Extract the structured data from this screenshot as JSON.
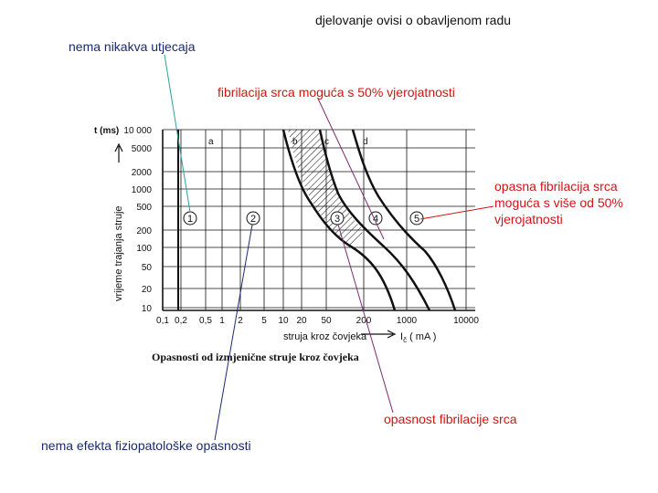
{
  "annotations": {
    "top_dependency": "djelovanje ovisi o obavljenom radu",
    "no_effect": "nema nikakva utjecaja",
    "fib_50": "fibrilacija srca moguća s 50% vjerojatnosti",
    "fib_over_50": "opasna fibrilacija srca moguća s više od 50% vjerojatnosti",
    "fib_danger": "opasnost fibrilacije srca",
    "no_patho": "nema efekta fiziopatološke opasnosti"
  },
  "chart": {
    "y_label": "vrijeme trajanja struje",
    "y_unit": "t (ms)",
    "x_label": "struja kroz čovjeka",
    "x_unit": "I",
    "x_unit_sub": "č",
    "x_unit_rest": "( mA )",
    "caption": "Opasnosti od izmjenične struje kroz čovjeka",
    "y_ticks": [
      "10 000",
      "5000",
      "2000",
      "1000",
      "500",
      "200",
      "100",
      "50",
      "20",
      "10"
    ],
    "x_ticks": [
      "0,1",
      "0,2",
      "0,5",
      "1",
      "2",
      "5",
      "10",
      "20",
      "50",
      "200",
      "1000",
      "10000"
    ],
    "curve_labels": [
      "a",
      "b",
      "c",
      "d"
    ],
    "zone_numbers": [
      "1",
      "2",
      "3",
      "4",
      "5"
    ]
  },
  "colors": {
    "blue_line": "#1a2a6e",
    "teal_line": "#2f9fa0",
    "red_line": "#d11414",
    "purple_line": "#7a2a6e",
    "red_text": "#d11414"
  }
}
